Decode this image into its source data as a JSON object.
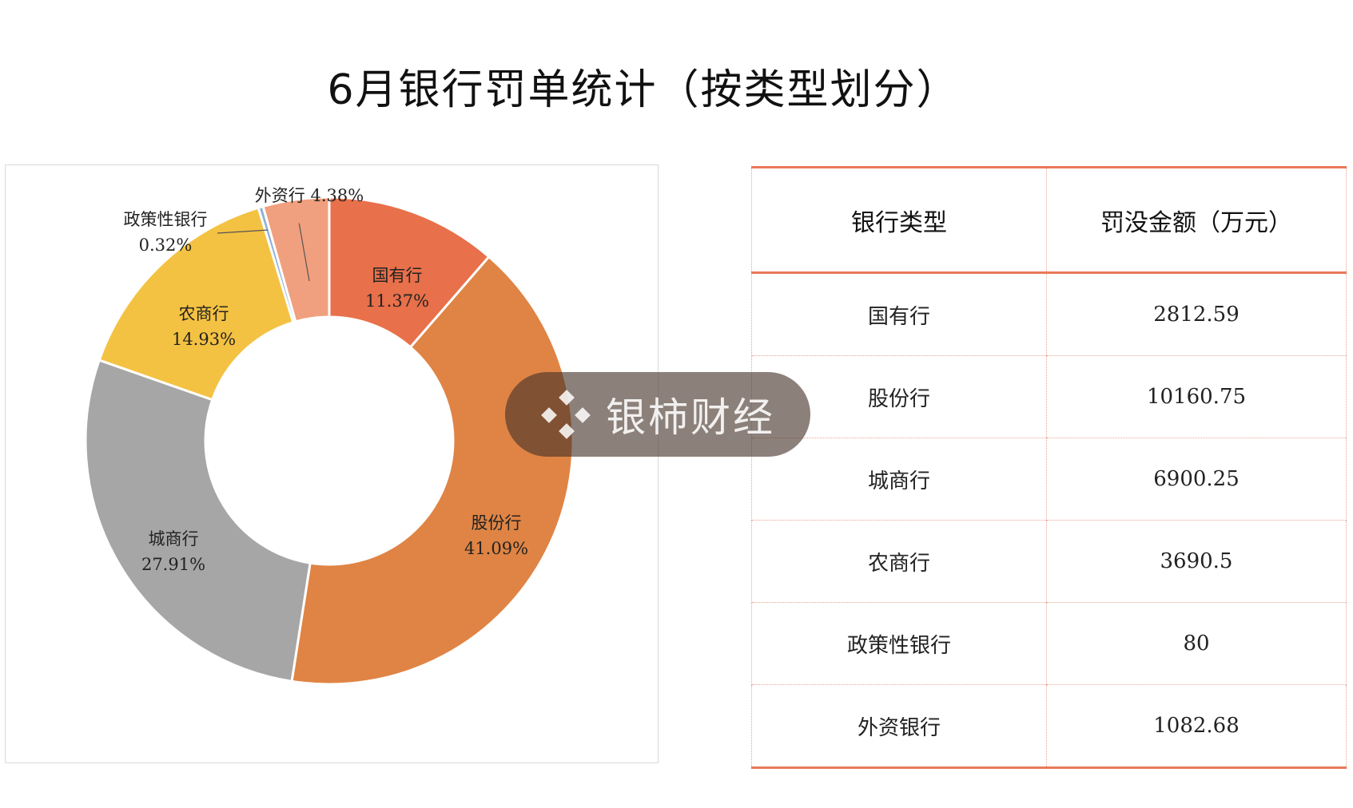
{
  "title": "6月银行罚单统计（按类型划分）",
  "watermark": "银柿财经",
  "table": {
    "headers": [
      "银行类型",
      "罚没金额（万元）"
    ],
    "rows": [
      [
        "国有行",
        "2812.59"
      ],
      [
        "股份行",
        "10160.75"
      ],
      [
        "城商行",
        "6900.25"
      ],
      [
        "农商行",
        "3690.5"
      ],
      [
        "政策性银行",
        "80"
      ],
      [
        "外资银行",
        "1082.68"
      ]
    ]
  },
  "chart_data": {
    "type": "pie",
    "style": "donut",
    "slices": [
      {
        "name": "国有行",
        "value": 11.37,
        "label": "11.37%",
        "color": "#e8704a"
      },
      {
        "name": "股份行",
        "value": 41.09,
        "label": "41.09%",
        "color": "#df8444"
      },
      {
        "name": "城商行",
        "value": 27.91,
        "label": "27.91%",
        "color": "#a6a6a6"
      },
      {
        "name": "农商行",
        "value": 14.93,
        "label": "14.93%",
        "color": "#f4c242"
      },
      {
        "name": "政策性银行",
        "value": 0.32,
        "label": "0.32%",
        "color": "#8fb0d6"
      },
      {
        "name": "外资行",
        "value": 4.38,
        "label": "4.38%",
        "color": "#f0a07e"
      }
    ],
    "legend": "none"
  },
  "colors": {
    "accent_line": "#e8795a",
    "table_dotted": "#e9a48f"
  }
}
